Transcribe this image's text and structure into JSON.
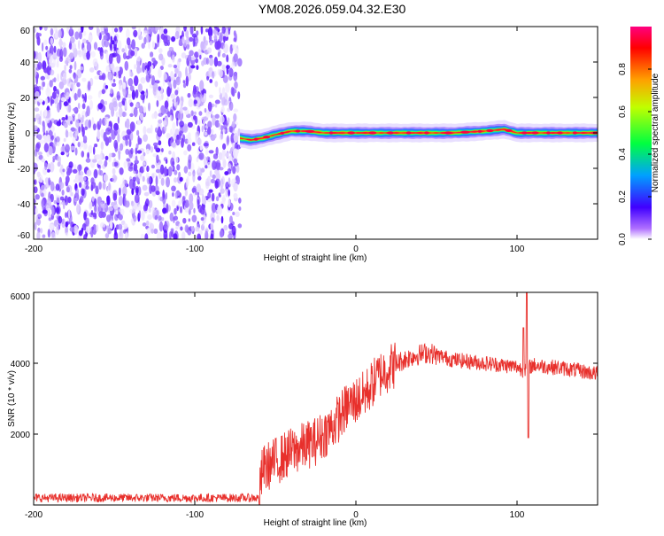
{
  "figure_title": "YM08.2026.059.04.32.E30",
  "chart_data": [
    {
      "type": "heatmap",
      "title": "YM08.2026.059.04.32.E30",
      "xlabel": "Height of straight line (km)",
      "ylabel": "Frequency (Hz)",
      "xlim": [
        -200,
        150
      ],
      "ylim": [
        -60,
        60
      ],
      "x_ticks": [
        -200,
        -100,
        0,
        100
      ],
      "x_tick_labels": [
        "-200",
        "-100",
        "0",
        "100"
      ],
      "y_ticks": [
        -60,
        -40,
        -20,
        0,
        20,
        40,
        60
      ],
      "y_tick_labels": [
        "-60",
        "-40",
        "-20",
        "0",
        "20",
        "40",
        "60"
      ],
      "colorbar": {
        "label": "Normalized spectral amplitude",
        "range": [
          0,
          1
        ],
        "ticks": [
          0,
          0.2,
          0.4,
          0.6,
          0.8
        ],
        "tick_labels": [
          "0.0",
          "0.2",
          "0.4",
          "0.6",
          "0.8"
        ],
        "colors": [
          "#ffffff",
          "#b070ff",
          "#4000ff",
          "#00a0ff",
          "#00ff40",
          "#c0ff00",
          "#ffa000",
          "#ff0000",
          "#ff0080"
        ]
      },
      "noise_region": {
        "x_range": [
          -200,
          -72
        ],
        "frequency_range": [
          -60,
          60
        ],
        "amplitude": "low",
        "color": "#6a2cff"
      },
      "signal_band": {
        "x_range": [
          -72,
          150
        ],
        "center_frequency": [
          [
            -72,
            -3
          ],
          [
            -65,
            -4
          ],
          [
            -58,
            -3
          ],
          [
            -50,
            -1
          ],
          [
            -40,
            1
          ],
          [
            -30,
            1
          ],
          [
            -20,
            0
          ],
          [
            -10,
            0
          ],
          [
            0,
            0
          ],
          [
            20,
            0
          ],
          [
            40,
            0
          ],
          [
            60,
            0
          ],
          [
            80,
            1
          ],
          [
            92,
            2
          ],
          [
            100,
            0
          ],
          [
            120,
            0
          ],
          [
            150,
            0
          ]
        ]
      }
    },
    {
      "type": "line",
      "xlabel": "Height of straight line (km)",
      "ylabel": "SNR (10 * v/v)",
      "xlim": [
        -200,
        150
      ],
      "ylim": [
        0,
        6000
      ],
      "x_ticks": [
        -200,
        -100,
        0,
        100
      ],
      "x_tick_labels": [
        "-200",
        "-100",
        "0",
        "100"
      ],
      "y_ticks": [
        2000,
        4000,
        6000
      ],
      "y_tick_labels": [
        "2000",
        "4000",
        "6000"
      ],
      "series": [
        {
          "name": "SNR",
          "color": "#e8302c",
          "trend": [
            [
              -200,
              200
            ],
            [
              -150,
              200
            ],
            [
              -100,
              200
            ],
            [
              -60,
              200
            ],
            [
              -58,
              1000
            ],
            [
              -40,
              1500
            ],
            [
              -25,
              1800
            ],
            [
              -15,
              2200
            ],
            [
              -5,
              2800
            ],
            [
              5,
              3100
            ],
            [
              15,
              3700
            ],
            [
              25,
              4000
            ],
            [
              35,
              4200
            ],
            [
              45,
              4300
            ],
            [
              60,
              4100
            ],
            [
              80,
              4000
            ],
            [
              100,
              3900
            ],
            [
              104,
              3800
            ],
            [
              110,
              3950
            ],
            [
              130,
              3850
            ],
            [
              150,
              3700
            ]
          ],
          "spikes": [
            {
              "x": 106,
              "y": 6000
            },
            {
              "x": 107,
              "y": 1900
            },
            {
              "x": 104,
              "y": 5000
            }
          ]
        }
      ]
    }
  ]
}
